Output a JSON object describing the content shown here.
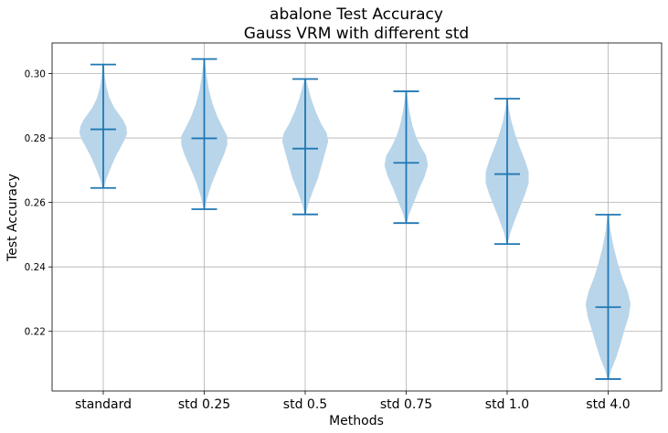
{
  "chart_data": {
    "type": "violin",
    "title": "abalone Test Accuracy\nGauss VRM with different std",
    "title_lines": [
      "abalone Test Accuracy",
      "Gauss VRM with different std"
    ],
    "xlabel": "Methods",
    "ylabel": "Test Accuracy",
    "ylim": [
      0.2015,
      0.3095
    ],
    "yticks": [
      0.22,
      0.24,
      0.26,
      0.28,
      0.3
    ],
    "ytick_labels": [
      "0.22",
      "0.24",
      "0.26",
      "0.28",
      "0.30"
    ],
    "grid": true,
    "color": "#1f77b4",
    "fill_color": "#b9d5ea",
    "categories": [
      "standard",
      "std 0.25",
      "std 0.5",
      "std 0.75",
      "std 1.0",
      "std 4.0"
    ],
    "violins": [
      {
        "name": "standard",
        "min": 0.2645,
        "max": 0.3028,
        "median": 0.2827,
        "profile": [
          [
            0.2645,
            0.03
          ],
          [
            0.2672,
            0.12
          ],
          [
            0.2705,
            0.28
          ],
          [
            0.274,
            0.47
          ],
          [
            0.277,
            0.67
          ],
          [
            0.2795,
            0.84
          ],
          [
            0.2815,
            0.93
          ],
          [
            0.2835,
            0.9
          ],
          [
            0.2855,
            0.78
          ],
          [
            0.2875,
            0.6
          ],
          [
            0.2895,
            0.42
          ],
          [
            0.2925,
            0.24
          ],
          [
            0.296,
            0.12
          ],
          [
            0.2995,
            0.06
          ],
          [
            0.3028,
            0.03
          ]
        ]
      },
      {
        "name": "std 0.25",
        "min": 0.2579,
        "max": 0.3045,
        "median": 0.2799,
        "profile": [
          [
            0.2579,
            0.02
          ],
          [
            0.2615,
            0.12
          ],
          [
            0.266,
            0.3
          ],
          [
            0.271,
            0.56
          ],
          [
            0.275,
            0.78
          ],
          [
            0.278,
            0.9
          ],
          [
            0.2805,
            0.9
          ],
          [
            0.283,
            0.74
          ],
          [
            0.2865,
            0.52
          ],
          [
            0.2905,
            0.33
          ],
          [
            0.295,
            0.18
          ],
          [
            0.2995,
            0.09
          ],
          [
            0.3045,
            0.02
          ]
        ]
      },
      {
        "name": "std 0.5",
        "min": 0.2563,
        "max": 0.2983,
        "median": 0.2767,
        "profile": [
          [
            0.2563,
            0.02
          ],
          [
            0.2595,
            0.12
          ],
          [
            0.2635,
            0.3
          ],
          [
            0.2675,
            0.5
          ],
          [
            0.2715,
            0.64
          ],
          [
            0.2755,
            0.78
          ],
          [
            0.279,
            0.9
          ],
          [
            0.2815,
            0.84
          ],
          [
            0.2845,
            0.62
          ],
          [
            0.288,
            0.42
          ],
          [
            0.292,
            0.24
          ],
          [
            0.2955,
            0.12
          ],
          [
            0.2983,
            0.03
          ]
        ]
      },
      {
        "name": "std 0.75",
        "min": 0.2536,
        "max": 0.2945,
        "median": 0.2723,
        "profile": [
          [
            0.2536,
            0.02
          ],
          [
            0.2565,
            0.12
          ],
          [
            0.26,
            0.3
          ],
          [
            0.2645,
            0.52
          ],
          [
            0.268,
            0.72
          ],
          [
            0.2715,
            0.85
          ],
          [
            0.2745,
            0.78
          ],
          [
            0.2775,
            0.56
          ],
          [
            0.2805,
            0.38
          ],
          [
            0.284,
            0.24
          ],
          [
            0.2885,
            0.12
          ],
          [
            0.2925,
            0.05
          ],
          [
            0.2945,
            0.02
          ]
        ]
      },
      {
        "name": "std 1.0",
        "min": 0.2471,
        "max": 0.2922,
        "median": 0.2688,
        "profile": [
          [
            0.2471,
            0.02
          ],
          [
            0.2505,
            0.12
          ],
          [
            0.2545,
            0.3
          ],
          [
            0.2585,
            0.5
          ],
          [
            0.2625,
            0.7
          ],
          [
            0.266,
            0.84
          ],
          [
            0.2695,
            0.84
          ],
          [
            0.273,
            0.7
          ],
          [
            0.277,
            0.5
          ],
          [
            0.281,
            0.32
          ],
          [
            0.285,
            0.17
          ],
          [
            0.289,
            0.07
          ],
          [
            0.2922,
            0.02
          ]
        ]
      },
      {
        "name": "std 4.0",
        "min": 0.2052,
        "max": 0.2562,
        "median": 0.2275,
        "profile": [
          [
            0.2052,
            0.02
          ],
          [
            0.208,
            0.12
          ],
          [
            0.2115,
            0.3
          ],
          [
            0.216,
            0.48
          ],
          [
            0.2205,
            0.64
          ],
          [
            0.2245,
            0.8
          ],
          [
            0.2285,
            0.88
          ],
          [
            0.2325,
            0.76
          ],
          [
            0.2365,
            0.56
          ],
          [
            0.241,
            0.38
          ],
          [
            0.246,
            0.22
          ],
          [
            0.251,
            0.1
          ],
          [
            0.2562,
            0.02
          ]
        ]
      }
    ]
  }
}
